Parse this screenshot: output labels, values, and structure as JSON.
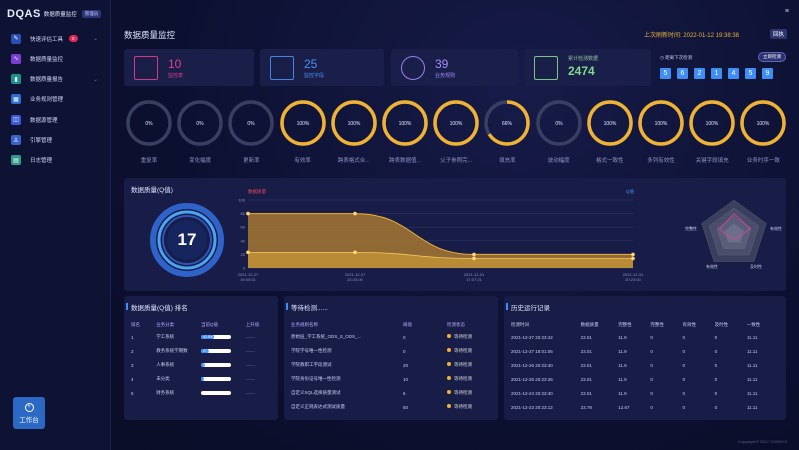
{
  "app": {
    "logo": "DQAS",
    "name": "数据质量监控",
    "role": "管理员"
  },
  "sidebar": {
    "items": [
      {
        "label": "快速评估工具",
        "badge": "0",
        "icon": "pencil-icon",
        "color": "#2b4fb4"
      },
      {
        "label": "数据质量监控",
        "icon": "pulse-icon",
        "color": "#7a3fd1"
      },
      {
        "label": "数据质量报告",
        "icon": "chart-icon",
        "color": "#1c8f91"
      },
      {
        "label": "业务规则管理",
        "icon": "rules-icon",
        "color": "#2c6dd1"
      },
      {
        "label": "数据源管理",
        "icon": "database-icon",
        "color": "#3b58d9"
      },
      {
        "label": "引擎管理",
        "icon": "engine-icon",
        "color": "#3a63c7"
      },
      {
        "label": "日志管理",
        "icon": "log-icon",
        "color": "#2f9a8a"
      }
    ],
    "workbench": "工作台"
  },
  "header": {
    "title": "数据质量监控",
    "refresh_label": "上次刷新时间:",
    "refresh_time": "2022-01-12 19:38:38",
    "refresh_btn": "回执"
  },
  "cards": [
    {
      "value": "10",
      "label": "监控表",
      "color": "#e33d8a",
      "icon": "table-doc-icon"
    },
    {
      "value": "25",
      "label": "监控字段",
      "color": "#4a8ff0",
      "icon": "field-icon"
    },
    {
      "value": "39",
      "label": "业务规则",
      "color": "#a58bff",
      "icon": "rule-badge-icon"
    },
    {
      "value": "2474",
      "label": "累计检测数据",
      "color": "#7fd98a",
      "icon": "layers-icon"
    }
  ],
  "countdown": {
    "label": "距离下次检测",
    "button": "立即检测",
    "digits": [
      "5",
      "6",
      "2",
      "1",
      "4",
      "5",
      "9"
    ]
  },
  "gauges": [
    {
      "label": "重复率",
      "value": "0%",
      "pct": 0
    },
    {
      "label": "变化幅度",
      "value": "0%",
      "pct": 0
    },
    {
      "label": "更新率",
      "value": "0%",
      "pct": 0
    },
    {
      "label": "有效率",
      "value": "100%",
      "pct": 100
    },
    {
      "label": "跨表格式合...",
      "value": "100%",
      "pct": 100
    },
    {
      "label": "跨表数据值...",
      "value": "100%",
      "pct": 100
    },
    {
      "label": "父子参照完...",
      "value": "100%",
      "pct": 100
    },
    {
      "label": "填充率",
      "value": "66%",
      "pct": 66
    },
    {
      "label": "波动幅度",
      "value": "0%",
      "pct": 0
    },
    {
      "label": "格式一致性",
      "value": "100%",
      "pct": 100
    },
    {
      "label": "多列有效性",
      "value": "100%",
      "pct": 100
    },
    {
      "label": "关键字段填充",
      "value": "100%",
      "pct": 100
    },
    {
      "label": "业务时序一致",
      "value": "100%",
      "pct": 100
    }
  ],
  "quality": {
    "title": "数据质量(Q值)",
    "score": "17",
    "left_legend": "数据质量",
    "right_legend": "Q值"
  },
  "chart_data": {
    "type": "area",
    "x": [
      "2021-12-27 19:00:01",
      "2021-12-27 20:23:00",
      "2021-12-31 17:07:21",
      "2021-12-31 20:23:00"
    ],
    "series": [
      {
        "name": "数据质量",
        "values": [
          80,
          80,
          20,
          20
        ]
      },
      {
        "name": "Q值",
        "values": [
          23,
          23,
          14,
          14
        ]
      }
    ],
    "ylim": [
      0,
      100
    ],
    "yticks": [
      "100",
      "80",
      "60",
      "40",
      "20",
      "0"
    ],
    "radar_labels": [
      "完整性",
      "有效性",
      "及时性",
      "有效性",
      "有效性"
    ]
  },
  "rank": {
    "title": "数据质量(Q值) 排名",
    "headers": [
      "排名",
      "业务分类",
      "当前Q值",
      "上升值"
    ],
    "rows": [
      {
        "rank": "1",
        "name": "学工系统",
        "q": "42.5%",
        "qpct": 42,
        "up": "——"
      },
      {
        "rank": "2",
        "name": "教务系统学期数",
        "q": "27.5%",
        "qpct": 27,
        "up": "——"
      },
      {
        "rank": "3",
        "name": "人事系统",
        "q": "12.5%",
        "qpct": 12,
        "up": "——"
      },
      {
        "rank": "4",
        "name": "未分类",
        "q": "11.5%",
        "qpct": 11,
        "up": "——"
      },
      {
        "rank": "5",
        "name": "财务系统",
        "q": "0%",
        "qpct": 0,
        "up": "——"
      }
    ]
  },
  "waiting": {
    "title": "等待检测......",
    "headers": [
      "业务规则名称",
      "阈值",
      "检测状态"
    ],
    "rows": [
      {
        "name": "原始层_学工系统_ODS_S_ODS_...",
        "th": "0",
        "status": "等待检测"
      },
      {
        "name": "学院学号唯一性检测",
        "th": "0",
        "status": "等待检测"
      },
      {
        "name": "学院教职工字段测试",
        "th": "20",
        "status": "等待检测"
      },
      {
        "name": "学院身份证号唯一性检测",
        "th": "10",
        "status": "等待检测"
      },
      {
        "name": "自定义SQL选择质量测试",
        "th": "6",
        "status": "等待检测"
      },
      {
        "name": "自定义正则表达式测试质量",
        "th": "50",
        "status": "等待检测"
      }
    ]
  },
  "history": {
    "title": "历史运行记录",
    "headers": [
      "检测时间",
      "数据质量",
      "完整性",
      "完整性",
      "有效性",
      "及时性",
      "一致性"
    ],
    "rows": [
      [
        "2021-12-27 20:23:42",
        "23.01",
        "11.9",
        "0",
        "0",
        "0",
        "11.11"
      ],
      [
        "2021-12-27 18:01:06",
        "23.01",
        "11.9",
        "0",
        "0",
        "0",
        "11.11"
      ],
      [
        "2021-12-26 20:23:40",
        "23.01",
        "11.9",
        "0",
        "0",
        "0",
        "11.11"
      ],
      [
        "2021-12-25 20:23:36",
        "23.01",
        "11.9",
        "0",
        "0",
        "0",
        "11.11"
      ],
      [
        "2021-12-24 20:23:40",
        "23.01",
        "11.9",
        "0",
        "0",
        "0",
        "11.11"
      ],
      [
        "2021-12-23 20:23:12",
        "23.78",
        "12.67",
        "0",
        "0",
        "0",
        "11.11"
      ]
    ]
  },
  "footer": "Copyright © 2017 CONSYS"
}
